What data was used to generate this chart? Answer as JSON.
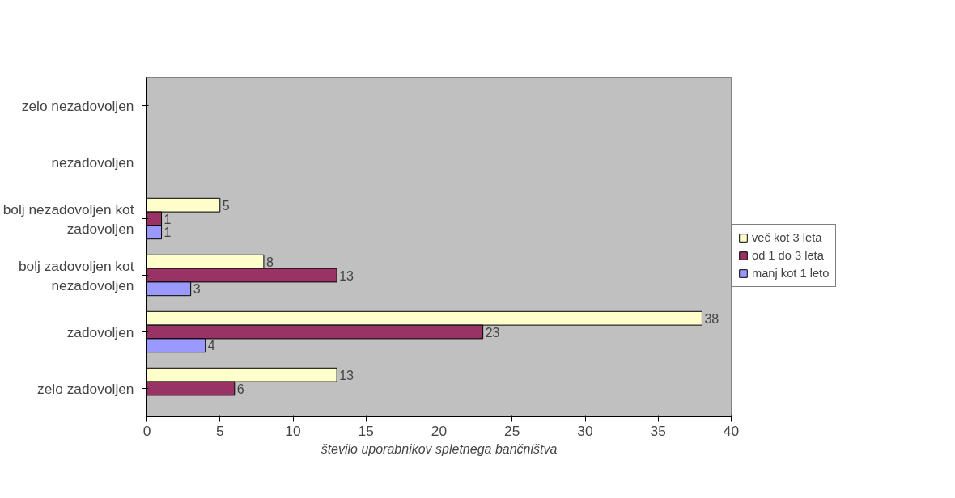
{
  "chart_data": {
    "type": "bar",
    "orientation": "horizontal",
    "categories": [
      "zelo nezadovoljen",
      "nezadovoljen",
      "bolj nezadovoljen kot zadovoljen",
      "bolj zadovoljen kot nezadovoljen",
      "zadovoljen",
      "zelo zadovoljen"
    ],
    "series": [
      {
        "name": "več kot 3 leta",
        "color": "#ffffcc",
        "values": [
          null,
          null,
          5,
          8,
          38,
          13
        ]
      },
      {
        "name": "od 1 do 3 leta",
        "color": "#993366",
        "values": [
          null,
          null,
          1,
          13,
          23,
          6
        ]
      },
      {
        "name": "manj kot 1 leto",
        "color": "#9999ff",
        "values": [
          null,
          null,
          1,
          3,
          4,
          null
        ]
      }
    ],
    "xlabel": "število uporabnikov spletnega bančništva",
    "xlim": [
      0,
      40
    ],
    "xticks": [
      0,
      5,
      10,
      15,
      20,
      25,
      30,
      35,
      40
    ],
    "data_labels": true,
    "grid": false,
    "legend": "right"
  }
}
